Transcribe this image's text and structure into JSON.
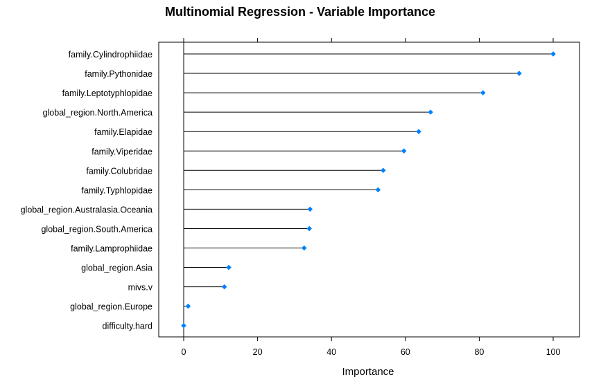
{
  "chart_data": {
    "type": "dot",
    "title": "Multinomial Regression - Variable Importance",
    "xlabel": "Importance",
    "ylabel": "",
    "xlim": [
      -7,
      107
    ],
    "xticks": [
      0,
      20,
      40,
      60,
      80,
      100
    ],
    "xtick_labels": [
      "0",
      "20",
      "40",
      "60",
      "80",
      "100"
    ],
    "grid": false,
    "marker_color": "#0080ff",
    "line_color": "#000000",
    "categories": [
      "family.Cylindrophiidae",
      "family.Pythonidae",
      "family.Leptotyphlopidae",
      "global_region.North.America",
      "family.Elapidae",
      "family.Viperidae",
      "family.Colubridae",
      "family.Typhlopidae",
      "global_region.Australasia.Oceania",
      "global_region.South.America",
      "family.Lamprophiidae",
      "global_region.Asia",
      "mivs.v",
      "global_region.Europe",
      "difficulty.hard"
    ],
    "values": [
      100,
      90.8,
      81.0,
      66.8,
      63.6,
      59.6,
      54.0,
      52.6,
      34.2,
      34.0,
      32.6,
      12.2,
      11.0,
      1.2,
      0
    ]
  }
}
